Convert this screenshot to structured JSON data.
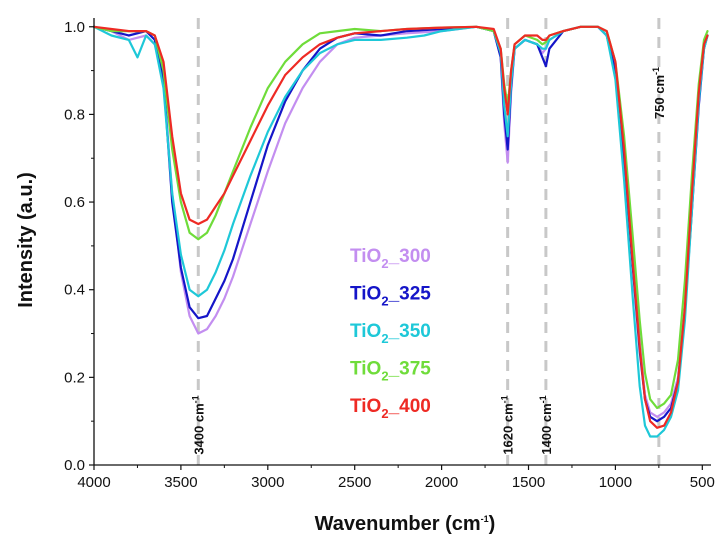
{
  "chart_data": {
    "type": "line",
    "xlabel": "Wavenumber (cm",
    "xlabel_sup": "-1",
    "xlabel_close": ")",
    "ylabel": "Intensity (a.u.)",
    "xlim": [
      4000,
      450
    ],
    "x_reversed": true,
    "ylim": [
      0.0,
      1.02
    ],
    "x_ticks": [
      4000,
      3500,
      3000,
      2500,
      2000,
      1500,
      1000,
      500
    ],
    "y_ticks": [
      "0.0",
      "0.2",
      "0.4",
      "0.6",
      "0.8",
      "1.0"
    ],
    "grid": false,
    "legend_position": "center",
    "annotations": [
      {
        "x": 3400,
        "main": "3400 cm",
        "sup": "-1"
      },
      {
        "x": 1620,
        "main": "1620 cm",
        "sup": "-1"
      },
      {
        "x": 1400,
        "main": "1400 cm",
        "sup": "-1"
      },
      {
        "x": 750,
        "main": "750 cm",
        "sup": "-1"
      }
    ],
    "series": [
      {
        "name": "TiO₂_300",
        "legend_main": "TiO",
        "legend_sub": "2",
        "legend_tail": "_300",
        "color": "#c38ef0",
        "points": [
          [
            4000,
            1.0
          ],
          [
            3900,
            0.99
          ],
          [
            3800,
            0.97
          ],
          [
            3700,
            0.98
          ],
          [
            3650,
            0.96
          ],
          [
            3600,
            0.88
          ],
          [
            3550,
            0.62
          ],
          [
            3500,
            0.44
          ],
          [
            3450,
            0.34
          ],
          [
            3400,
            0.3
          ],
          [
            3350,
            0.31
          ],
          [
            3300,
            0.34
          ],
          [
            3250,
            0.38
          ],
          [
            3200,
            0.43
          ],
          [
            3100,
            0.55
          ],
          [
            3000,
            0.67
          ],
          [
            2900,
            0.78
          ],
          [
            2800,
            0.86
          ],
          [
            2700,
            0.92
          ],
          [
            2600,
            0.96
          ],
          [
            2500,
            0.975
          ],
          [
            2350,
            0.98
          ],
          [
            2200,
            0.985
          ],
          [
            2000,
            0.99
          ],
          [
            1800,
            1.0
          ],
          [
            1700,
            0.99
          ],
          [
            1660,
            0.93
          ],
          [
            1640,
            0.78
          ],
          [
            1620,
            0.69
          ],
          [
            1600,
            0.85
          ],
          [
            1580,
            0.95
          ],
          [
            1520,
            0.97
          ],
          [
            1450,
            0.96
          ],
          [
            1420,
            0.94
          ],
          [
            1400,
            0.95
          ],
          [
            1380,
            0.97
          ],
          [
            1300,
            0.99
          ],
          [
            1200,
            1.0
          ],
          [
            1100,
            1.0
          ],
          [
            1050,
            0.98
          ],
          [
            1000,
            0.9
          ],
          [
            950,
            0.72
          ],
          [
            900,
            0.48
          ],
          [
            860,
            0.28
          ],
          [
            830,
            0.16
          ],
          [
            800,
            0.12
          ],
          [
            760,
            0.11
          ],
          [
            720,
            0.12
          ],
          [
            680,
            0.14
          ],
          [
            640,
            0.2
          ],
          [
            600,
            0.36
          ],
          [
            560,
            0.6
          ],
          [
            520,
            0.84
          ],
          [
            490,
            0.96
          ],
          [
            470,
            0.98
          ]
        ]
      },
      {
        "name": "TiO₂_325",
        "legend_main": "TiO",
        "legend_sub": "2",
        "legend_tail": "_325",
        "color": "#1515c8",
        "points": [
          [
            4000,
            1.0
          ],
          [
            3900,
            0.99
          ],
          [
            3800,
            0.98
          ],
          [
            3700,
            0.99
          ],
          [
            3650,
            0.97
          ],
          [
            3600,
            0.88
          ],
          [
            3550,
            0.6
          ],
          [
            3500,
            0.45
          ],
          [
            3450,
            0.36
          ],
          [
            3400,
            0.335
          ],
          [
            3350,
            0.34
          ],
          [
            3300,
            0.38
          ],
          [
            3250,
            0.42
          ],
          [
            3200,
            0.47
          ],
          [
            3100,
            0.6
          ],
          [
            3000,
            0.73
          ],
          [
            2900,
            0.83
          ],
          [
            2800,
            0.9
          ],
          [
            2700,
            0.95
          ],
          [
            2600,
            0.975
          ],
          [
            2500,
            0.985
          ],
          [
            2350,
            0.98
          ],
          [
            2200,
            0.99
          ],
          [
            2000,
            0.995
          ],
          [
            1800,
            1.0
          ],
          [
            1700,
            0.99
          ],
          [
            1660,
            0.93
          ],
          [
            1640,
            0.8
          ],
          [
            1620,
            0.72
          ],
          [
            1600,
            0.86
          ],
          [
            1580,
            0.95
          ],
          [
            1520,
            0.97
          ],
          [
            1450,
            0.96
          ],
          [
            1420,
            0.93
          ],
          [
            1400,
            0.91
          ],
          [
            1380,
            0.95
          ],
          [
            1300,
            0.99
          ],
          [
            1200,
            1.0
          ],
          [
            1100,
            1.0
          ],
          [
            1050,
            0.98
          ],
          [
            1000,
            0.9
          ],
          [
            950,
            0.7
          ],
          [
            900,
            0.45
          ],
          [
            860,
            0.26
          ],
          [
            830,
            0.15
          ],
          [
            800,
            0.11
          ],
          [
            760,
            0.1
          ],
          [
            720,
            0.11
          ],
          [
            680,
            0.13
          ],
          [
            640,
            0.19
          ],
          [
            600,
            0.35
          ],
          [
            560,
            0.58
          ],
          [
            520,
            0.82
          ],
          [
            490,
            0.95
          ],
          [
            470,
            0.98
          ]
        ]
      },
      {
        "name": "TiO₂_350",
        "legend_main": "TiO",
        "legend_sub": "2",
        "legend_tail": "_350",
        "color": "#1ec8d8",
        "points": [
          [
            4000,
            1.0
          ],
          [
            3900,
            0.98
          ],
          [
            3800,
            0.97
          ],
          [
            3750,
            0.93
          ],
          [
            3700,
            0.98
          ],
          [
            3650,
            0.96
          ],
          [
            3600,
            0.86
          ],
          [
            3550,
            0.62
          ],
          [
            3500,
            0.48
          ],
          [
            3450,
            0.4
          ],
          [
            3400,
            0.385
          ],
          [
            3350,
            0.4
          ],
          [
            3300,
            0.44
          ],
          [
            3250,
            0.49
          ],
          [
            3200,
            0.55
          ],
          [
            3100,
            0.66
          ],
          [
            3000,
            0.76
          ],
          [
            2900,
            0.84
          ],
          [
            2800,
            0.9
          ],
          [
            2700,
            0.94
          ],
          [
            2600,
            0.96
          ],
          [
            2500,
            0.97
          ],
          [
            2350,
            0.97
          ],
          [
            2200,
            0.975
          ],
          [
            2100,
            0.98
          ],
          [
            2000,
            0.99
          ],
          [
            1800,
            1.0
          ],
          [
            1700,
            0.99
          ],
          [
            1660,
            0.94
          ],
          [
            1640,
            0.82
          ],
          [
            1620,
            0.75
          ],
          [
            1600,
            0.87
          ],
          [
            1580,
            0.95
          ],
          [
            1520,
            0.97
          ],
          [
            1450,
            0.96
          ],
          [
            1420,
            0.95
          ],
          [
            1400,
            0.95
          ],
          [
            1380,
            0.97
          ],
          [
            1300,
            0.99
          ],
          [
            1200,
            1.0
          ],
          [
            1100,
            1.0
          ],
          [
            1050,
            0.98
          ],
          [
            1000,
            0.88
          ],
          [
            950,
            0.65
          ],
          [
            900,
            0.38
          ],
          [
            860,
            0.18
          ],
          [
            830,
            0.09
          ],
          [
            800,
            0.065
          ],
          [
            760,
            0.065
          ],
          [
            720,
            0.08
          ],
          [
            680,
            0.11
          ],
          [
            640,
            0.17
          ],
          [
            600,
            0.33
          ],
          [
            560,
            0.58
          ],
          [
            520,
            0.83
          ],
          [
            490,
            0.95
          ],
          [
            470,
            0.98
          ]
        ]
      },
      {
        "name": "TiO₂_375",
        "legend_main": "TiO",
        "legend_sub": "2",
        "legend_tail": "_375",
        "color": "#6fdc3a",
        "points": [
          [
            4000,
            1.0
          ],
          [
            3900,
            0.99
          ],
          [
            3800,
            0.99
          ],
          [
            3700,
            0.99
          ],
          [
            3650,
            0.98
          ],
          [
            3600,
            0.9
          ],
          [
            3550,
            0.72
          ],
          [
            3500,
            0.6
          ],
          [
            3450,
            0.53
          ],
          [
            3400,
            0.515
          ],
          [
            3350,
            0.53
          ],
          [
            3300,
            0.57
          ],
          [
            3250,
            0.62
          ],
          [
            3200,
            0.67
          ],
          [
            3100,
            0.77
          ],
          [
            3000,
            0.86
          ],
          [
            2900,
            0.92
          ],
          [
            2800,
            0.96
          ],
          [
            2700,
            0.985
          ],
          [
            2600,
            0.99
          ],
          [
            2500,
            0.995
          ],
          [
            2350,
            0.99
          ],
          [
            2200,
            0.995
          ],
          [
            2000,
            0.998
          ],
          [
            1800,
            1.0
          ],
          [
            1700,
            0.99
          ],
          [
            1660,
            0.95
          ],
          [
            1640,
            0.87
          ],
          [
            1620,
            0.82
          ],
          [
            1600,
            0.9
          ],
          [
            1580,
            0.96
          ],
          [
            1520,
            0.98
          ],
          [
            1450,
            0.97
          ],
          [
            1420,
            0.96
          ],
          [
            1400,
            0.965
          ],
          [
            1380,
            0.98
          ],
          [
            1300,
            0.99
          ],
          [
            1200,
            1.0
          ],
          [
            1100,
            1.0
          ],
          [
            1050,
            0.99
          ],
          [
            1000,
            0.92
          ],
          [
            950,
            0.75
          ],
          [
            900,
            0.52
          ],
          [
            860,
            0.33
          ],
          [
            830,
            0.21
          ],
          [
            800,
            0.15
          ],
          [
            760,
            0.13
          ],
          [
            720,
            0.14
          ],
          [
            680,
            0.16
          ],
          [
            640,
            0.24
          ],
          [
            600,
            0.42
          ],
          [
            560,
            0.66
          ],
          [
            520,
            0.87
          ],
          [
            490,
            0.97
          ],
          [
            470,
            0.99
          ]
        ]
      },
      {
        "name": "TiO₂_400",
        "legend_main": "TiO",
        "legend_sub": "2",
        "legend_tail": "_400",
        "color": "#ee2a24",
        "points": [
          [
            4000,
            1.0
          ],
          [
            3900,
            0.995
          ],
          [
            3800,
            0.99
          ],
          [
            3700,
            0.99
          ],
          [
            3650,
            0.98
          ],
          [
            3600,
            0.92
          ],
          [
            3550,
            0.75
          ],
          [
            3500,
            0.62
          ],
          [
            3450,
            0.56
          ],
          [
            3400,
            0.55
          ],
          [
            3350,
            0.56
          ],
          [
            3300,
            0.59
          ],
          [
            3250,
            0.62
          ],
          [
            3200,
            0.66
          ],
          [
            3100,
            0.74
          ],
          [
            3000,
            0.82
          ],
          [
            2900,
            0.89
          ],
          [
            2800,
            0.93
          ],
          [
            2700,
            0.96
          ],
          [
            2600,
            0.975
          ],
          [
            2500,
            0.985
          ],
          [
            2350,
            0.99
          ],
          [
            2200,
            0.995
          ],
          [
            2000,
            0.998
          ],
          [
            1800,
            1.0
          ],
          [
            1700,
            0.995
          ],
          [
            1660,
            0.95
          ],
          [
            1640,
            0.86
          ],
          [
            1620,
            0.8
          ],
          [
            1600,
            0.9
          ],
          [
            1580,
            0.96
          ],
          [
            1520,
            0.98
          ],
          [
            1450,
            0.98
          ],
          [
            1420,
            0.97
          ],
          [
            1400,
            0.97
          ],
          [
            1380,
            0.98
          ],
          [
            1300,
            0.99
          ],
          [
            1200,
            1.0
          ],
          [
            1100,
            1.0
          ],
          [
            1050,
            0.99
          ],
          [
            1000,
            0.92
          ],
          [
            950,
            0.72
          ],
          [
            900,
            0.46
          ],
          [
            860,
            0.27
          ],
          [
            830,
            0.15
          ],
          [
            800,
            0.1
          ],
          [
            760,
            0.085
          ],
          [
            720,
            0.09
          ],
          [
            680,
            0.12
          ],
          [
            640,
            0.19
          ],
          [
            600,
            0.36
          ],
          [
            560,
            0.62
          ],
          [
            520,
            0.85
          ],
          [
            490,
            0.96
          ],
          [
            470,
            0.98
          ]
        ]
      }
    ]
  }
}
